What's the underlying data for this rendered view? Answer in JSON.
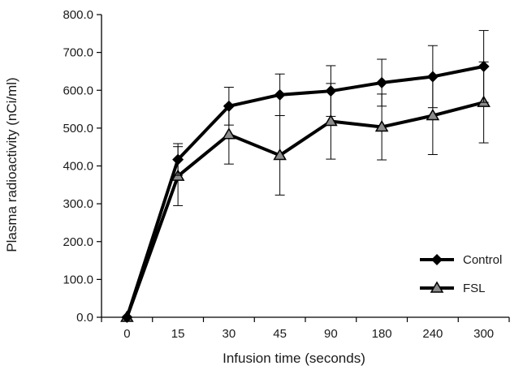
{
  "chart_data": {
    "type": "line",
    "title": "",
    "xlabel": "Infusion time (seconds)",
    "ylabel": "Plasma radioactivity (nCi/ml)",
    "categories": [
      "0",
      "15",
      "30",
      "45",
      "90",
      "180",
      "240",
      "300"
    ],
    "ylim": [
      0,
      800
    ],
    "yticks": [
      "0.0",
      "100.0",
      "200.0",
      "300.0",
      "400.0",
      "500.0",
      "600.0",
      "700.0",
      "800.0"
    ],
    "grid": false,
    "legend": "bottom-right",
    "series": [
      {
        "name": "Control",
        "marker": "diamond",
        "color": "#000000",
        "values": [
          0,
          417,
          558,
          588,
          598,
          620,
          636,
          663
        ],
        "error": [
          0,
          42,
          50,
          55,
          67,
          62,
          82,
          95
        ]
      },
      {
        "name": "FSL",
        "marker": "triangle",
        "color": "#000000",
        "fill": "#8c8c8c",
        "values": [
          0,
          373,
          483,
          428,
          518,
          503,
          533,
          568
        ],
        "error": [
          0,
          78,
          78,
          105,
          100,
          87,
          103,
          107
        ]
      }
    ]
  }
}
